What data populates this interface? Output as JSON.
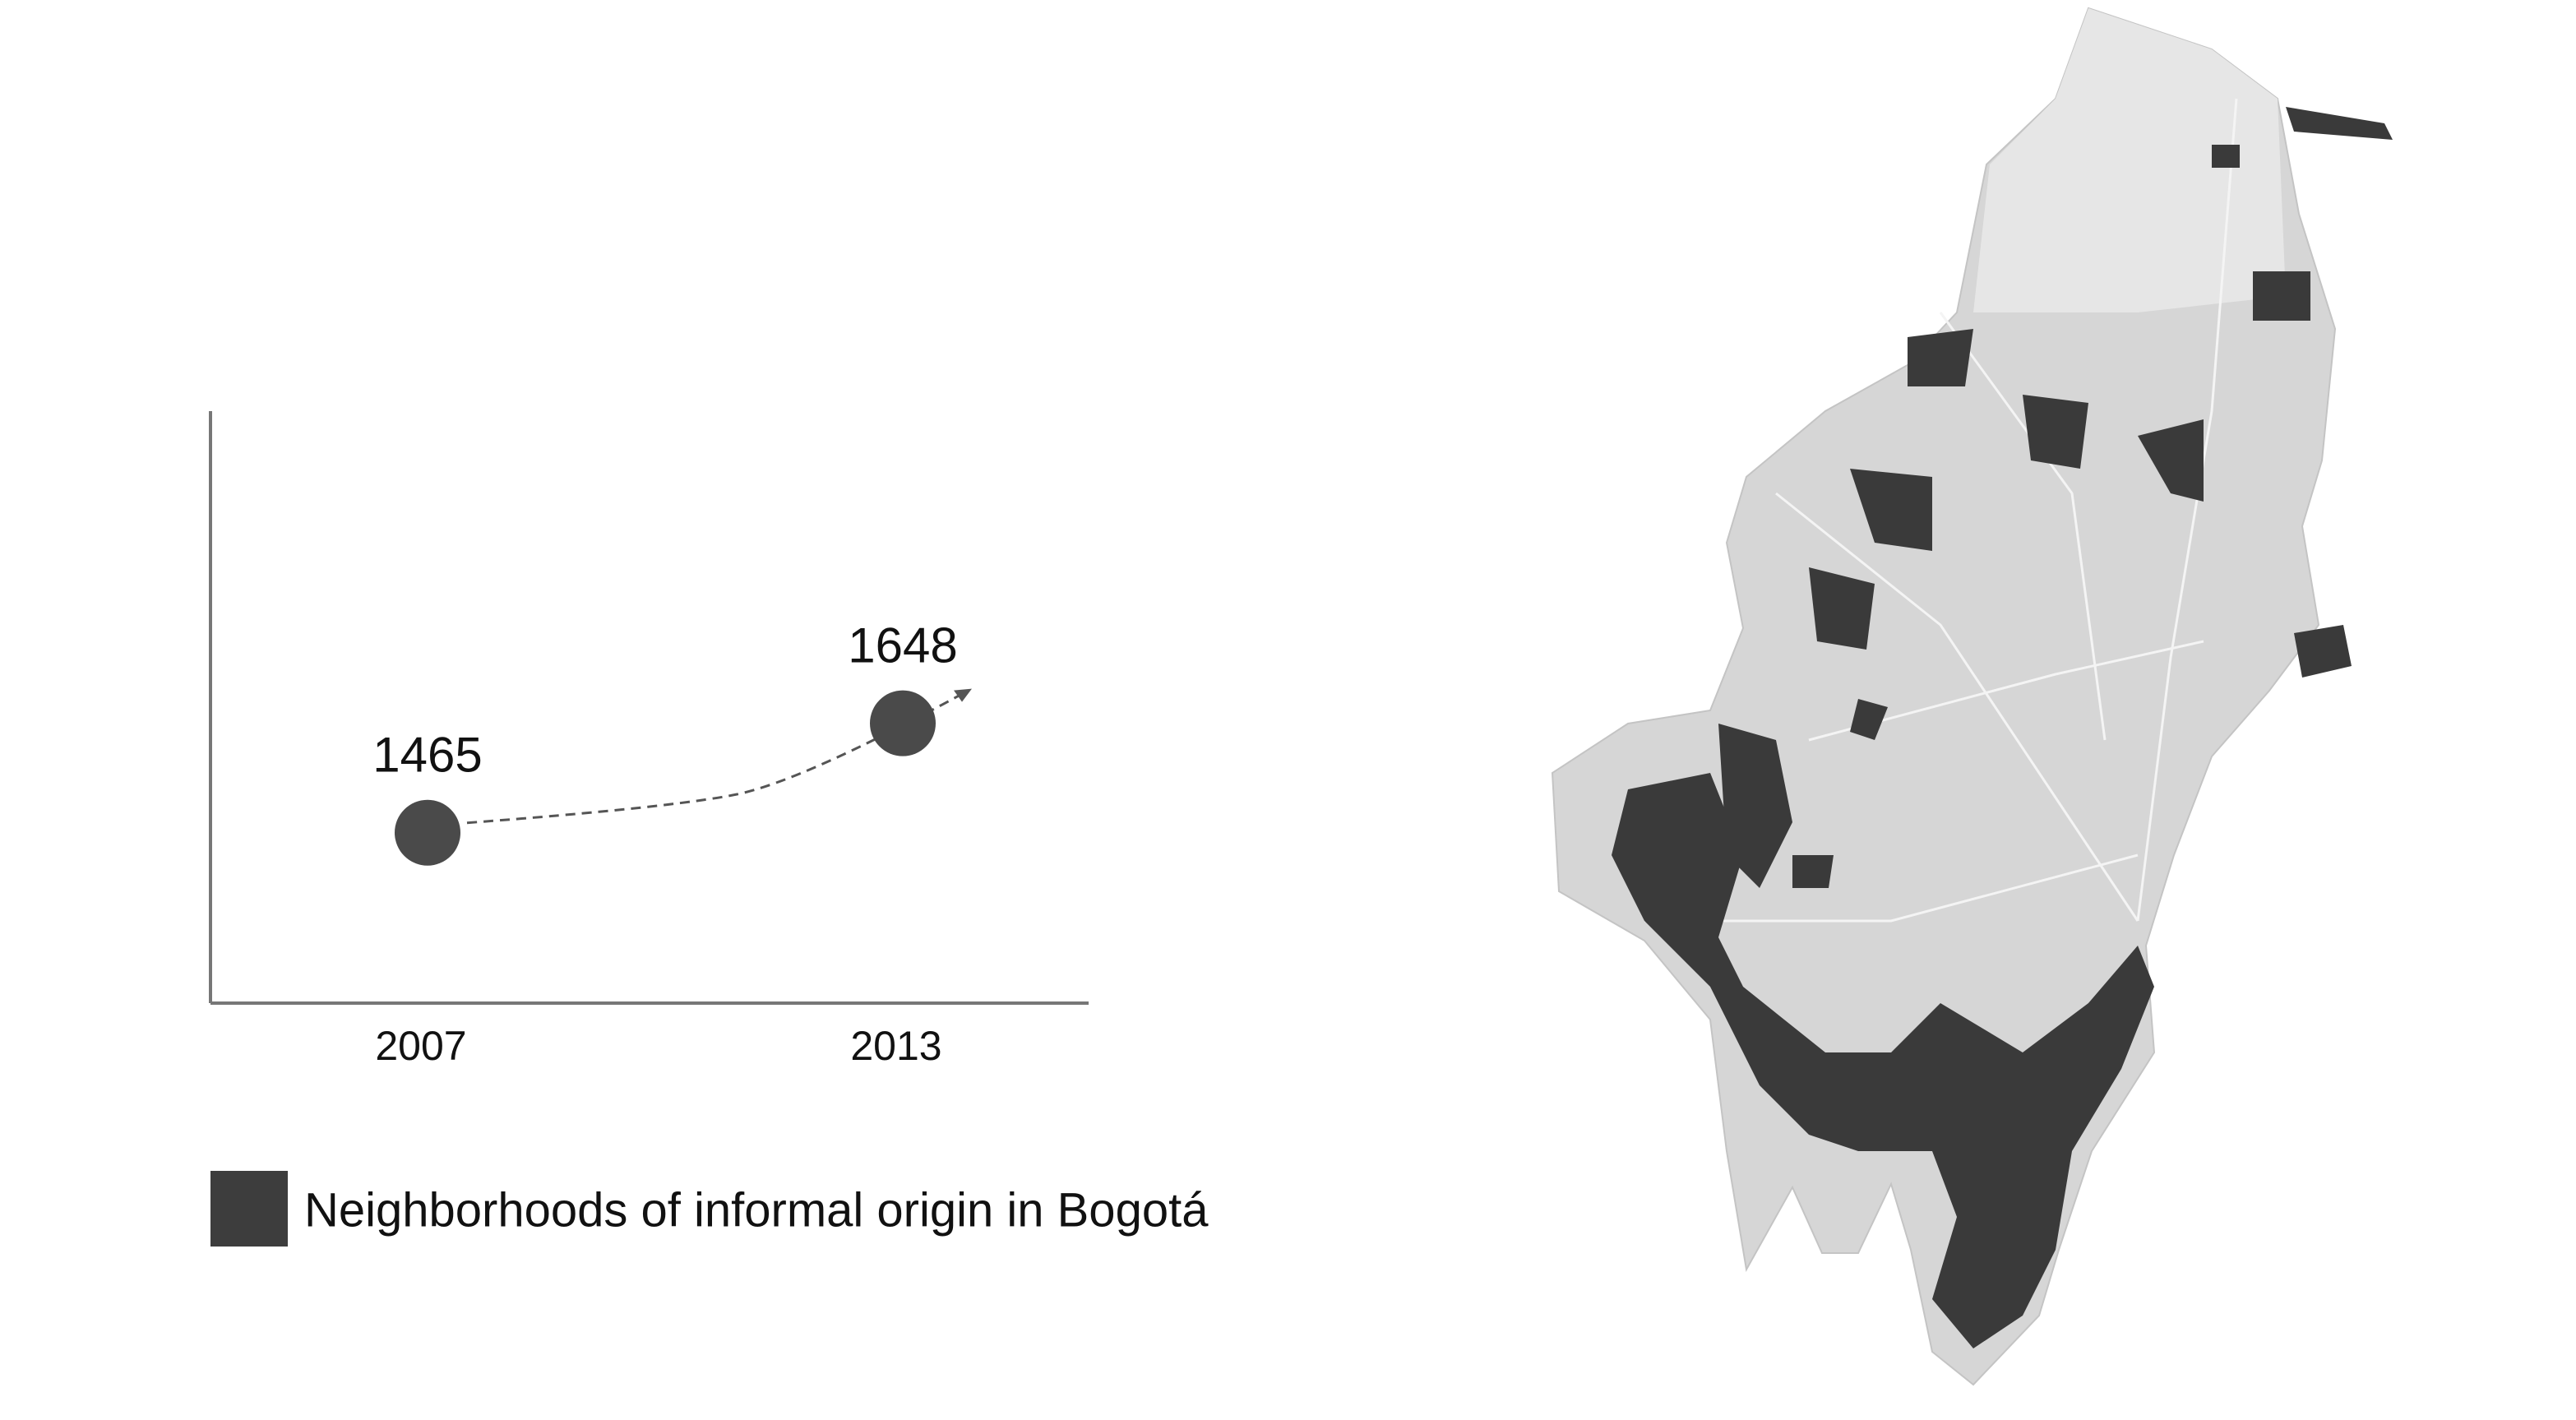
{
  "chart_data": {
    "type": "scatter",
    "categories": [
      "2007",
      "2013"
    ],
    "values": [
      1465,
      1648
    ],
    "color": "#4a4a4a",
    "ylim": [
      1180,
      2170
    ],
    "legend": {
      "label": "Neighborhoods of informal origin in Bogotá",
      "color": "#3d3d3d"
    }
  }
}
